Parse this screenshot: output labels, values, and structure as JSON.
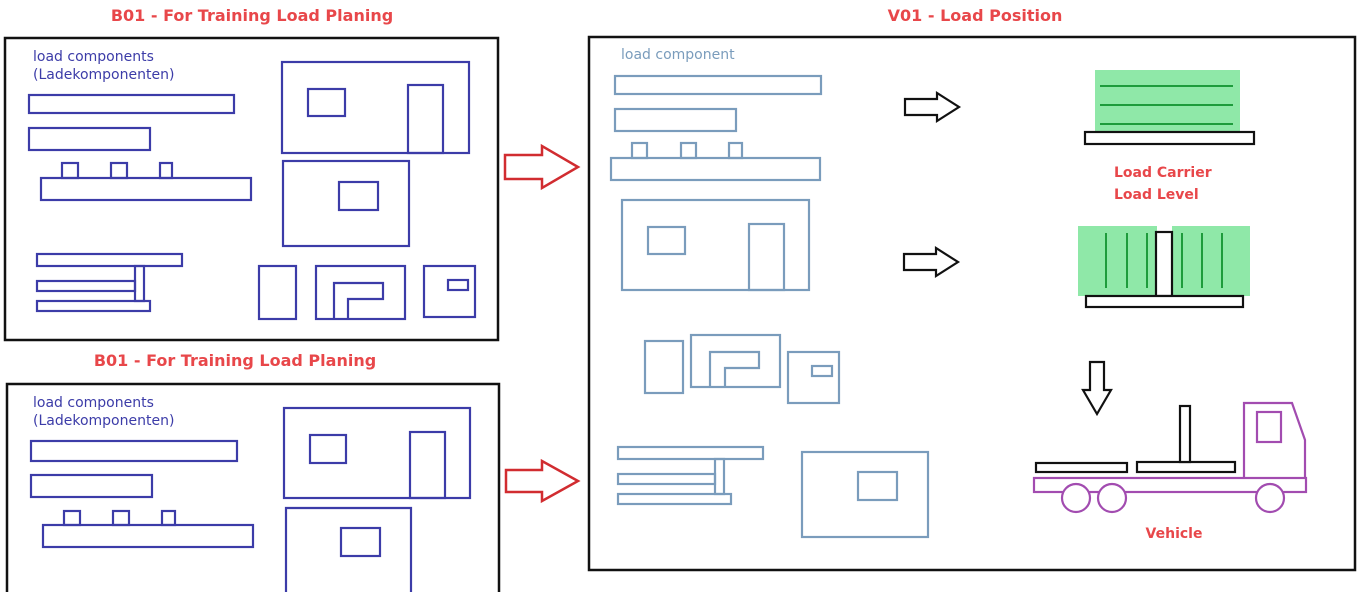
{
  "colors": {
    "accent_red": "#e8474a",
    "component_blue": "#3c3ca8",
    "component_light": "#7a9cbc",
    "carrier_green": "#8fe8a8",
    "green_line": "#1e9c3c",
    "vehicle_purple": "#a24cb0",
    "frame": "#111111"
  },
  "panels": {
    "b01_top": {
      "title": "B01 - For Training Load Planing",
      "label_line1": "load components",
      "label_line2": "(Ladekomponenten)"
    },
    "b01_bottom": {
      "title": "B01 - For Training Load Planing",
      "label_line1": "load components",
      "label_line2": "(Ladekomponenten)"
    },
    "v01": {
      "title": "V01 - Load Position",
      "component_label": "load component",
      "carrier_label_1": "Load Carrier",
      "carrier_label_2": "Load Level",
      "vehicle_label": "Vehicle"
    }
  },
  "icons": [
    "red-arrow-icon",
    "black-arrow-icon",
    "down-arrow-icon",
    "truck-icon",
    "load-carrier-icon",
    "load-level-icon"
  ]
}
